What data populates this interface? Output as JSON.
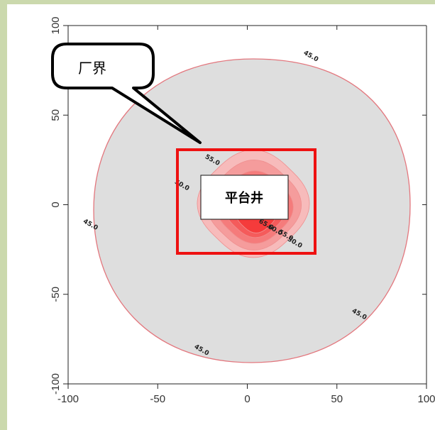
{
  "chart_data": {
    "type": "contour",
    "title": "",
    "xlabel": "",
    "ylabel": "",
    "xlim": [
      -100,
      100
    ],
    "ylim": [
      -100,
      100
    ],
    "x_ticks": [
      "-100",
      "-50",
      "0",
      "50",
      "100"
    ],
    "y_ticks": [
      "-100",
      "-50",
      "0",
      "50",
      "100"
    ],
    "grid": false,
    "colors": {
      "outer_region": "#dedede",
      "outer_contour_line": "#e3777e",
      "inner_fills": [
        "#f7bbbb",
        "#f59c9c",
        "#f57b7b",
        "#f55b5b",
        "#f53b3b"
      ],
      "boundary_box": "#ee1111"
    },
    "contour_levels": [
      "45.0",
      "50.0",
      "55.0",
      "60.0",
      "65.0"
    ],
    "contour_labels": [
      {
        "text": "45.0",
        "x": 35,
        "y": 82
      },
      {
        "text": "45.0",
        "x": -58,
        "y": 70
      },
      {
        "text": "45.0",
        "x": -88,
        "y": -12
      },
      {
        "text": "45.0",
        "x": -26,
        "y": -82
      },
      {
        "text": "45.0",
        "x": 62,
        "y": -62
      },
      {
        "text": "50.0",
        "x": -37,
        "y": 10
      },
      {
        "text": "55.0",
        "x": -20,
        "y": 24
      },
      {
        "text": "65.0",
        "x": 10,
        "y": -12
      },
      {
        "text": "60.0",
        "x": 15,
        "y": -15
      },
      {
        "text": "55.0",
        "x": 21,
        "y": -18
      },
      {
        "text": "50.0",
        "x": 26,
        "y": -22
      }
    ]
  },
  "annotations": {
    "callout_label": "厂界",
    "platform_label": "平台井"
  }
}
